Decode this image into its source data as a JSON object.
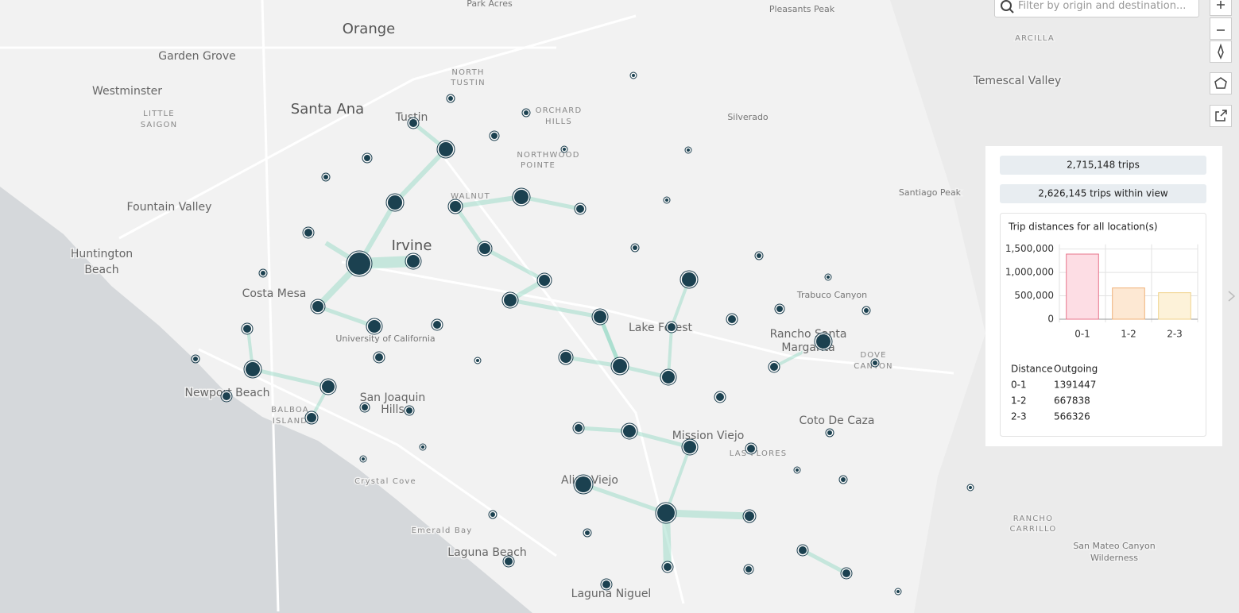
{
  "search": {
    "placeholder": "Filter by origin and destination..."
  },
  "stats": {
    "total": "2,715,148 trips",
    "in_view": "2,626,145 trips within view"
  },
  "map": {
    "places": [
      "Orange",
      "Garden Grove",
      "Westminster",
      "LITTLE",
      "SAIGON",
      "Santa Ana",
      "Tustin",
      "NORTH",
      "TUSTIN",
      "ORCHARD",
      "HILLS",
      "NORTHWOOD",
      "POINTE",
      "WALNUT",
      "Fountain Valley",
      "Huntington",
      "Beach",
      "Irvine",
      "Costa Mesa",
      "University of California",
      "Newport Beach",
      "San Joaquin",
      "Hills",
      "BALBOA",
      "ISLAND",
      "Crystal Cove",
      "Emerald Bay",
      "Laguna Beach",
      "Laguna Niguel",
      "Aliso Viejo",
      "Mission Viejo",
      "LAS FLORES",
      "Lake Forest",
      "Rancho Santa",
      "Margarita",
      "Trabuco Canyon",
      "DOVE",
      "CANYON",
      "Coto De Caza",
      "RANCHO",
      "CARRILLO",
      "San Mateo Canyon",
      "Wilderness",
      "Santiago Peak",
      "Silverado",
      "Pleasants Peak",
      "ARCILLA",
      "Temescal Valley",
      "Park Acres"
    ]
  },
  "chart_data": {
    "type": "bar",
    "title": "Trip distances for all location(s)",
    "categories": [
      "0-1",
      "1-2",
      "2-3"
    ],
    "values": [
      1391447,
      667838,
      566326
    ],
    "colors": [
      "#e8758b",
      "#f0b27a",
      "#f0d38c"
    ],
    "fills": [
      "#fddde4",
      "#fde8d3",
      "#fdf2d9"
    ],
    "ylim": [
      0,
      1600000
    ],
    "yticks": [
      0,
      {
        "value": 500000,
        "label": "500,000"
      },
      {
        "value": 1000000,
        "label": "1,000,000"
      },
      {
        "value": 1500000,
        "label": "1,500,000"
      }
    ],
    "grid": true
  },
  "table": {
    "header": [
      "Distance",
      "Outgoing"
    ]
  }
}
